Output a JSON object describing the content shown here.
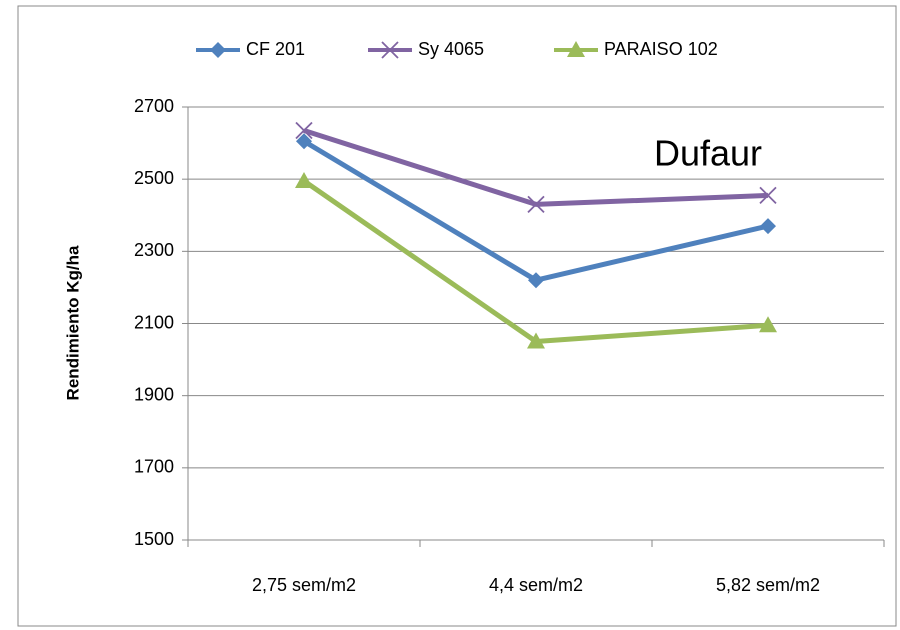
{
  "chart_data": {
    "type": "line",
    "annotation": "Dufaur",
    "y_axis_label": "Rendimiento Kg/ha",
    "categories": [
      "2,75 sem/m2",
      "4,4 sem/m2",
      "5,82 sem/m2"
    ],
    "series": [
      {
        "name": "CF 201",
        "color": "#4f81bd",
        "marker": "diamond",
        "values": [
          2605,
          2220,
          2370
        ]
      },
      {
        "name": "Sy 4065",
        "color": "#8064a2",
        "marker": "x",
        "values": [
          2635,
          2430,
          2455
        ]
      },
      {
        "name": "PARAISO 102",
        "color": "#9bbb59",
        "marker": "triangle",
        "values": [
          2495,
          2050,
          2095
        ]
      }
    ],
    "ylim": [
      1500,
      2700
    ],
    "yticks": [
      1500,
      1700,
      1900,
      2100,
      2300,
      2500,
      2700
    ],
    "grid": true,
    "legend": "top"
  }
}
